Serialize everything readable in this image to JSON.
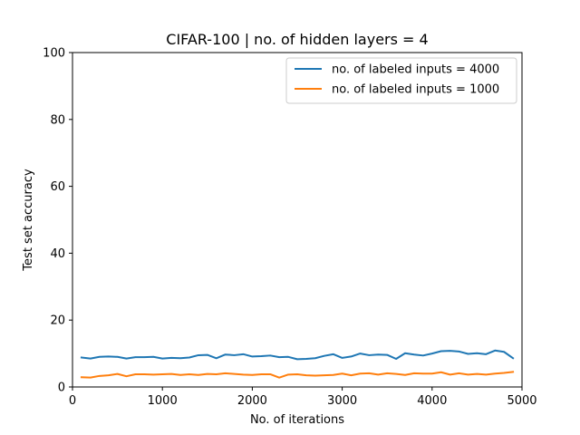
{
  "chart_data": {
    "type": "line",
    "title": "CIFAR-100 | no. of hidden layers = 4",
    "xlabel": "No. of iterations",
    "ylabel": "Test set accuracy",
    "xlim": [
      0,
      5000
    ],
    "ylim": [
      0,
      100
    ],
    "xticks": [
      0,
      1000,
      2000,
      3000,
      4000,
      5000
    ],
    "yticks": [
      0,
      20,
      40,
      60,
      80,
      100
    ],
    "grid": false,
    "legend_position": "top-right",
    "x": [
      100,
      200,
      300,
      400,
      500,
      600,
      700,
      800,
      900,
      1000,
      1100,
      1200,
      1300,
      1400,
      1500,
      1600,
      1700,
      1800,
      1900,
      2000,
      2100,
      2200,
      2300,
      2400,
      2500,
      2600,
      2700,
      2800,
      2900,
      3000,
      3100,
      3200,
      3300,
      3400,
      3500,
      3600,
      3700,
      3800,
      3900,
      4000,
      4100,
      4200,
      4300,
      4400,
      4500,
      4600,
      4700,
      4800,
      4900
    ],
    "series": [
      {
        "name": "no. of labeled inputs = 4000",
        "color": "#1f77b4",
        "values": [
          8.8,
          8.5,
          9.0,
          9.1,
          9.0,
          8.5,
          8.9,
          8.9,
          9.0,
          8.5,
          8.7,
          8.6,
          8.8,
          9.5,
          9.6,
          8.6,
          9.7,
          9.5,
          9.8,
          9.1,
          9.2,
          9.4,
          8.9,
          9.0,
          8.3,
          8.4,
          8.6,
          9.3,
          9.8,
          8.7,
          9.1,
          10.0,
          9.5,
          9.7,
          9.6,
          8.4,
          10.1,
          9.7,
          9.4,
          10.0,
          10.7,
          10.8,
          10.6,
          9.9,
          10.1,
          9.8,
          10.9,
          10.5,
          8.6
        ]
      },
      {
        "name": "no. of labeled inputs = 1000",
        "color": "#ff7f0e",
        "values": [
          2.9,
          2.8,
          3.3,
          3.5,
          3.9,
          3.2,
          3.8,
          3.8,
          3.7,
          3.8,
          3.9,
          3.6,
          3.8,
          3.6,
          3.9,
          3.8,
          4.1,
          3.9,
          3.7,
          3.6,
          3.8,
          3.8,
          2.8,
          3.7,
          3.8,
          3.5,
          3.4,
          3.5,
          3.6,
          4.0,
          3.5,
          4.0,
          4.1,
          3.7,
          4.1,
          3.9,
          3.6,
          4.1,
          4.0,
          4.0,
          4.4,
          3.7,
          4.1,
          3.7,
          3.9,
          3.7,
          4.0,
          4.2,
          4.5
        ]
      }
    ]
  }
}
